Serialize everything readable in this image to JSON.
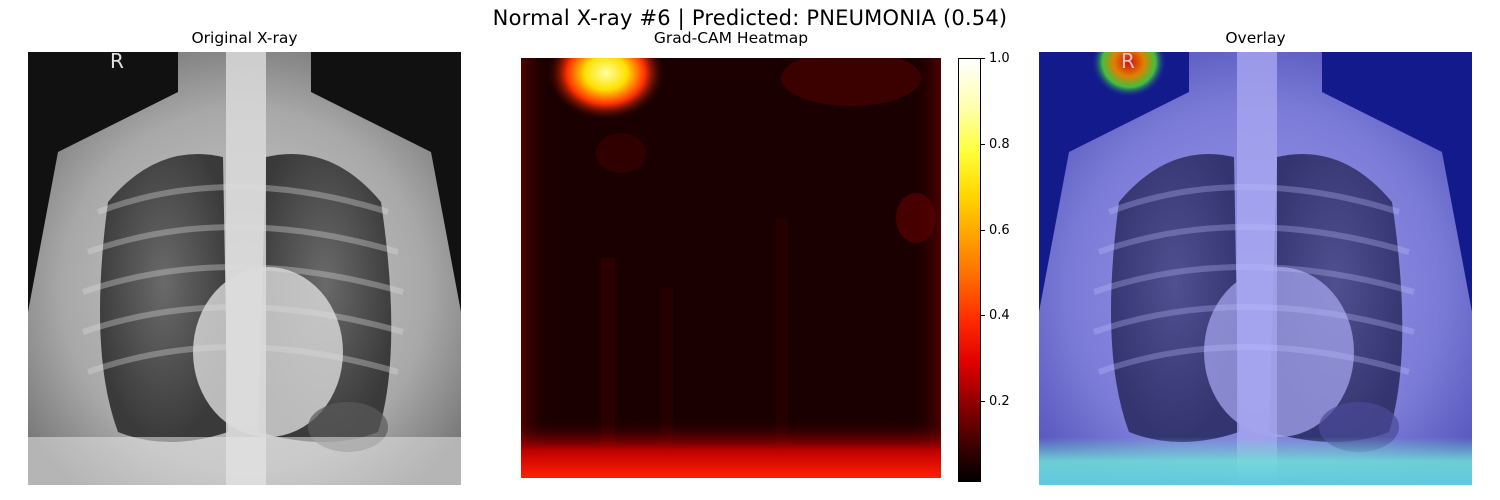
{
  "figure": {
    "suptitle": "Normal X-ray #6 | Predicted: PNEUMONIA (0.54)"
  },
  "panels": {
    "original": {
      "title": "Original X-ray",
      "marker": "R"
    },
    "heatmap": {
      "title": "Grad-CAM Heatmap"
    },
    "overlay": {
      "title": "Overlay",
      "marker": "R"
    }
  },
  "colorbar": {
    "colormap": "hot",
    "range": [
      0.0,
      1.0
    ],
    "ticks": [
      "1.0",
      "0.8",
      "0.6",
      "0.4",
      "0.2"
    ],
    "tick_values": [
      1.0,
      0.8,
      0.6,
      0.4,
      0.2
    ]
  },
  "colors": {
    "overlay_tint": "#5a5ae8",
    "heat_peak": "#ffff80",
    "heat_low": "#1a0000"
  }
}
